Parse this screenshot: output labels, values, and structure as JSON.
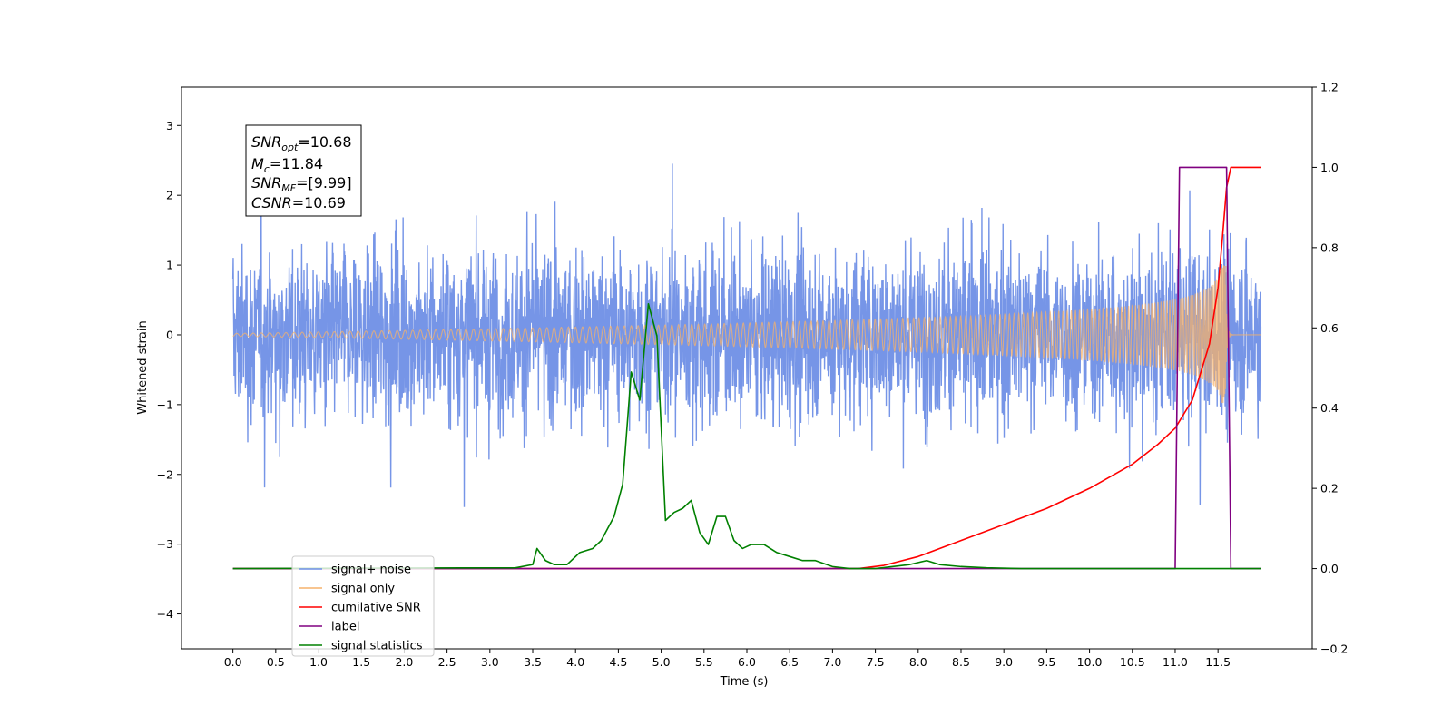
{
  "chart_data": {
    "type": "line",
    "xlabel": "Time (s)",
    "ylabel": "Whitened strain",
    "xlim": [
      -0.6,
      12.6
    ],
    "ylim": [
      -4.5,
      3.55
    ],
    "y2lim": [
      -0.2,
      1.2
    ],
    "x_ticks": [
      "0.0",
      "0.5",
      "1.0",
      "1.5",
      "2.0",
      "2.5",
      "3.0",
      "3.5",
      "4.0",
      "4.5",
      "5.0",
      "5.5",
      "6.0",
      "6.5",
      "7.0",
      "7.5",
      "8.0",
      "8.5",
      "9.0",
      "9.5",
      "10.0",
      "10.5",
      "11.0",
      "11.5"
    ],
    "y_ticks": [
      "3",
      "2",
      "1",
      "0",
      "−1",
      "−2",
      "−3",
      "−4"
    ],
    "y2_ticks": [
      "1.2",
      "1.0",
      "0.8",
      "0.6",
      "0.4",
      "0.2",
      "0.0",
      "−0.2"
    ],
    "legend_placement": "lower-left",
    "annotation": {
      "snr_opt_base": "SNR",
      "snr_opt_sub": "opt",
      "snr_opt_value": "=10.68",
      "mc_base": "M",
      "mc_sub": "c",
      "mc_value": "=11.84",
      "snr_mf_base": "SNR",
      "snr_mf_sub": "MF",
      "snr_mf_value": "=[9.99]",
      "csnr_base": "CSNR",
      "csnr_value": "=10.69"
    },
    "series": [
      {
        "name": "signal+ noise",
        "color": "#6f8fe6",
        "axis": "left",
        "kind": "noise",
        "x_range": [
          0,
          12
        ],
        "envelope": 1.1
      },
      {
        "name": "signal only",
        "color": "#f5b26b",
        "axis": "left",
        "kind": "chirp",
        "x_range": [
          0,
          11.6
        ],
        "peak_amplitude": 1.0
      },
      {
        "name": "cumilative SNR",
        "color": "#ff0000",
        "axis": "right",
        "x": [
          0,
          7.3,
          7.6,
          8.0,
          8.5,
          9.0,
          9.5,
          10.0,
          10.5,
          10.8,
          11.0,
          11.2,
          11.4,
          11.5,
          11.55,
          11.6,
          11.65,
          12.0
        ],
        "y": [
          0,
          0,
          0.008,
          0.03,
          0.07,
          0.11,
          0.15,
          0.2,
          0.26,
          0.31,
          0.35,
          0.42,
          0.56,
          0.7,
          0.82,
          0.95,
          1.0,
          1.0
        ]
      },
      {
        "name": "label",
        "color": "#800080",
        "axis": "right",
        "x": [
          0,
          11.0,
          11.05,
          11.6,
          11.65,
          12.0
        ],
        "y": [
          0,
          0,
          1.0,
          1.0,
          0,
          0
        ]
      },
      {
        "name": "signal statistics",
        "color": "#008000",
        "axis": "right",
        "x": [
          0,
          3.3,
          3.5,
          3.55,
          3.65,
          3.75,
          3.9,
          4.05,
          4.2,
          4.3,
          4.45,
          4.55,
          4.65,
          4.75,
          4.85,
          4.95,
          5.05,
          5.15,
          5.25,
          5.35,
          5.45,
          5.55,
          5.65,
          5.75,
          5.85,
          5.95,
          6.05,
          6.2,
          6.35,
          6.5,
          6.65,
          6.8,
          7.0,
          7.2,
          7.5,
          7.9,
          8.1,
          8.25,
          8.5,
          8.8,
          9.2,
          11.5,
          12.0
        ],
        "y": [
          0,
          0.002,
          0.01,
          0.05,
          0.02,
          0.01,
          0.01,
          0.04,
          0.05,
          0.07,
          0.13,
          0.21,
          0.49,
          0.42,
          0.66,
          0.58,
          0.12,
          0.14,
          0.15,
          0.17,
          0.09,
          0.06,
          0.13,
          0.13,
          0.07,
          0.05,
          0.06,
          0.06,
          0.04,
          0.03,
          0.02,
          0.02,
          0.005,
          0.0,
          0.0,
          0.01,
          0.02,
          0.01,
          0.005,
          0.002,
          0.0,
          0.0,
          0.0
        ]
      }
    ]
  }
}
